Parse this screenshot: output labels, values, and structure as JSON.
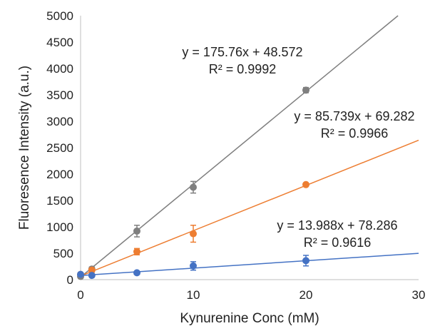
{
  "chart_data": {
    "type": "scatter",
    "title": "",
    "xlabel": "Kynurenine Conc (mM)",
    "ylabel": "Fluoresence Intensity (a.u.)",
    "xlim": [
      0,
      30
    ],
    "ylim": [
      0,
      5000
    ],
    "xticks": [
      0,
      10,
      20,
      30
    ],
    "yticks": [
      0,
      500,
      1000,
      1500,
      2000,
      2500,
      3000,
      3500,
      4000,
      4500,
      5000
    ],
    "grid": false,
    "legend": "none",
    "series": [
      {
        "color": "#7f7f7f",
        "x": [
          0,
          1,
          5,
          10,
          20
        ],
        "y": [
          60,
          200,
          920,
          1750,
          3590
        ],
        "error": [
          20,
          40,
          110,
          110,
          50
        ],
        "trendline": {
          "slope": 175.76,
          "intercept": 48.572
        },
        "equation": "y = 175.76x + 48.572",
        "r2": "R² = 0.9992"
      },
      {
        "color": "#ed7d31",
        "x": [
          0,
          1,
          5,
          10,
          20
        ],
        "y": [
          100,
          180,
          530,
          870,
          1800
        ],
        "error": [
          20,
          40,
          60,
          160,
          20
        ],
        "trendline": {
          "slope": 85.739,
          "intercept": 69.282
        },
        "equation": "y = 85.739x + 69.282",
        "r2": "R² = 0.9966"
      },
      {
        "color": "#4472c4",
        "x": [
          0,
          1,
          5,
          10,
          20
        ],
        "y": [
          100,
          80,
          130,
          260,
          360
        ],
        "error": [
          20,
          20,
          20,
          80,
          100
        ],
        "trendline": {
          "slope": 13.988,
          "intercept": 78.286
        },
        "equation": "y = 13.988x + 78.286",
        "r2": "R² = 0.9616"
      }
    ]
  }
}
